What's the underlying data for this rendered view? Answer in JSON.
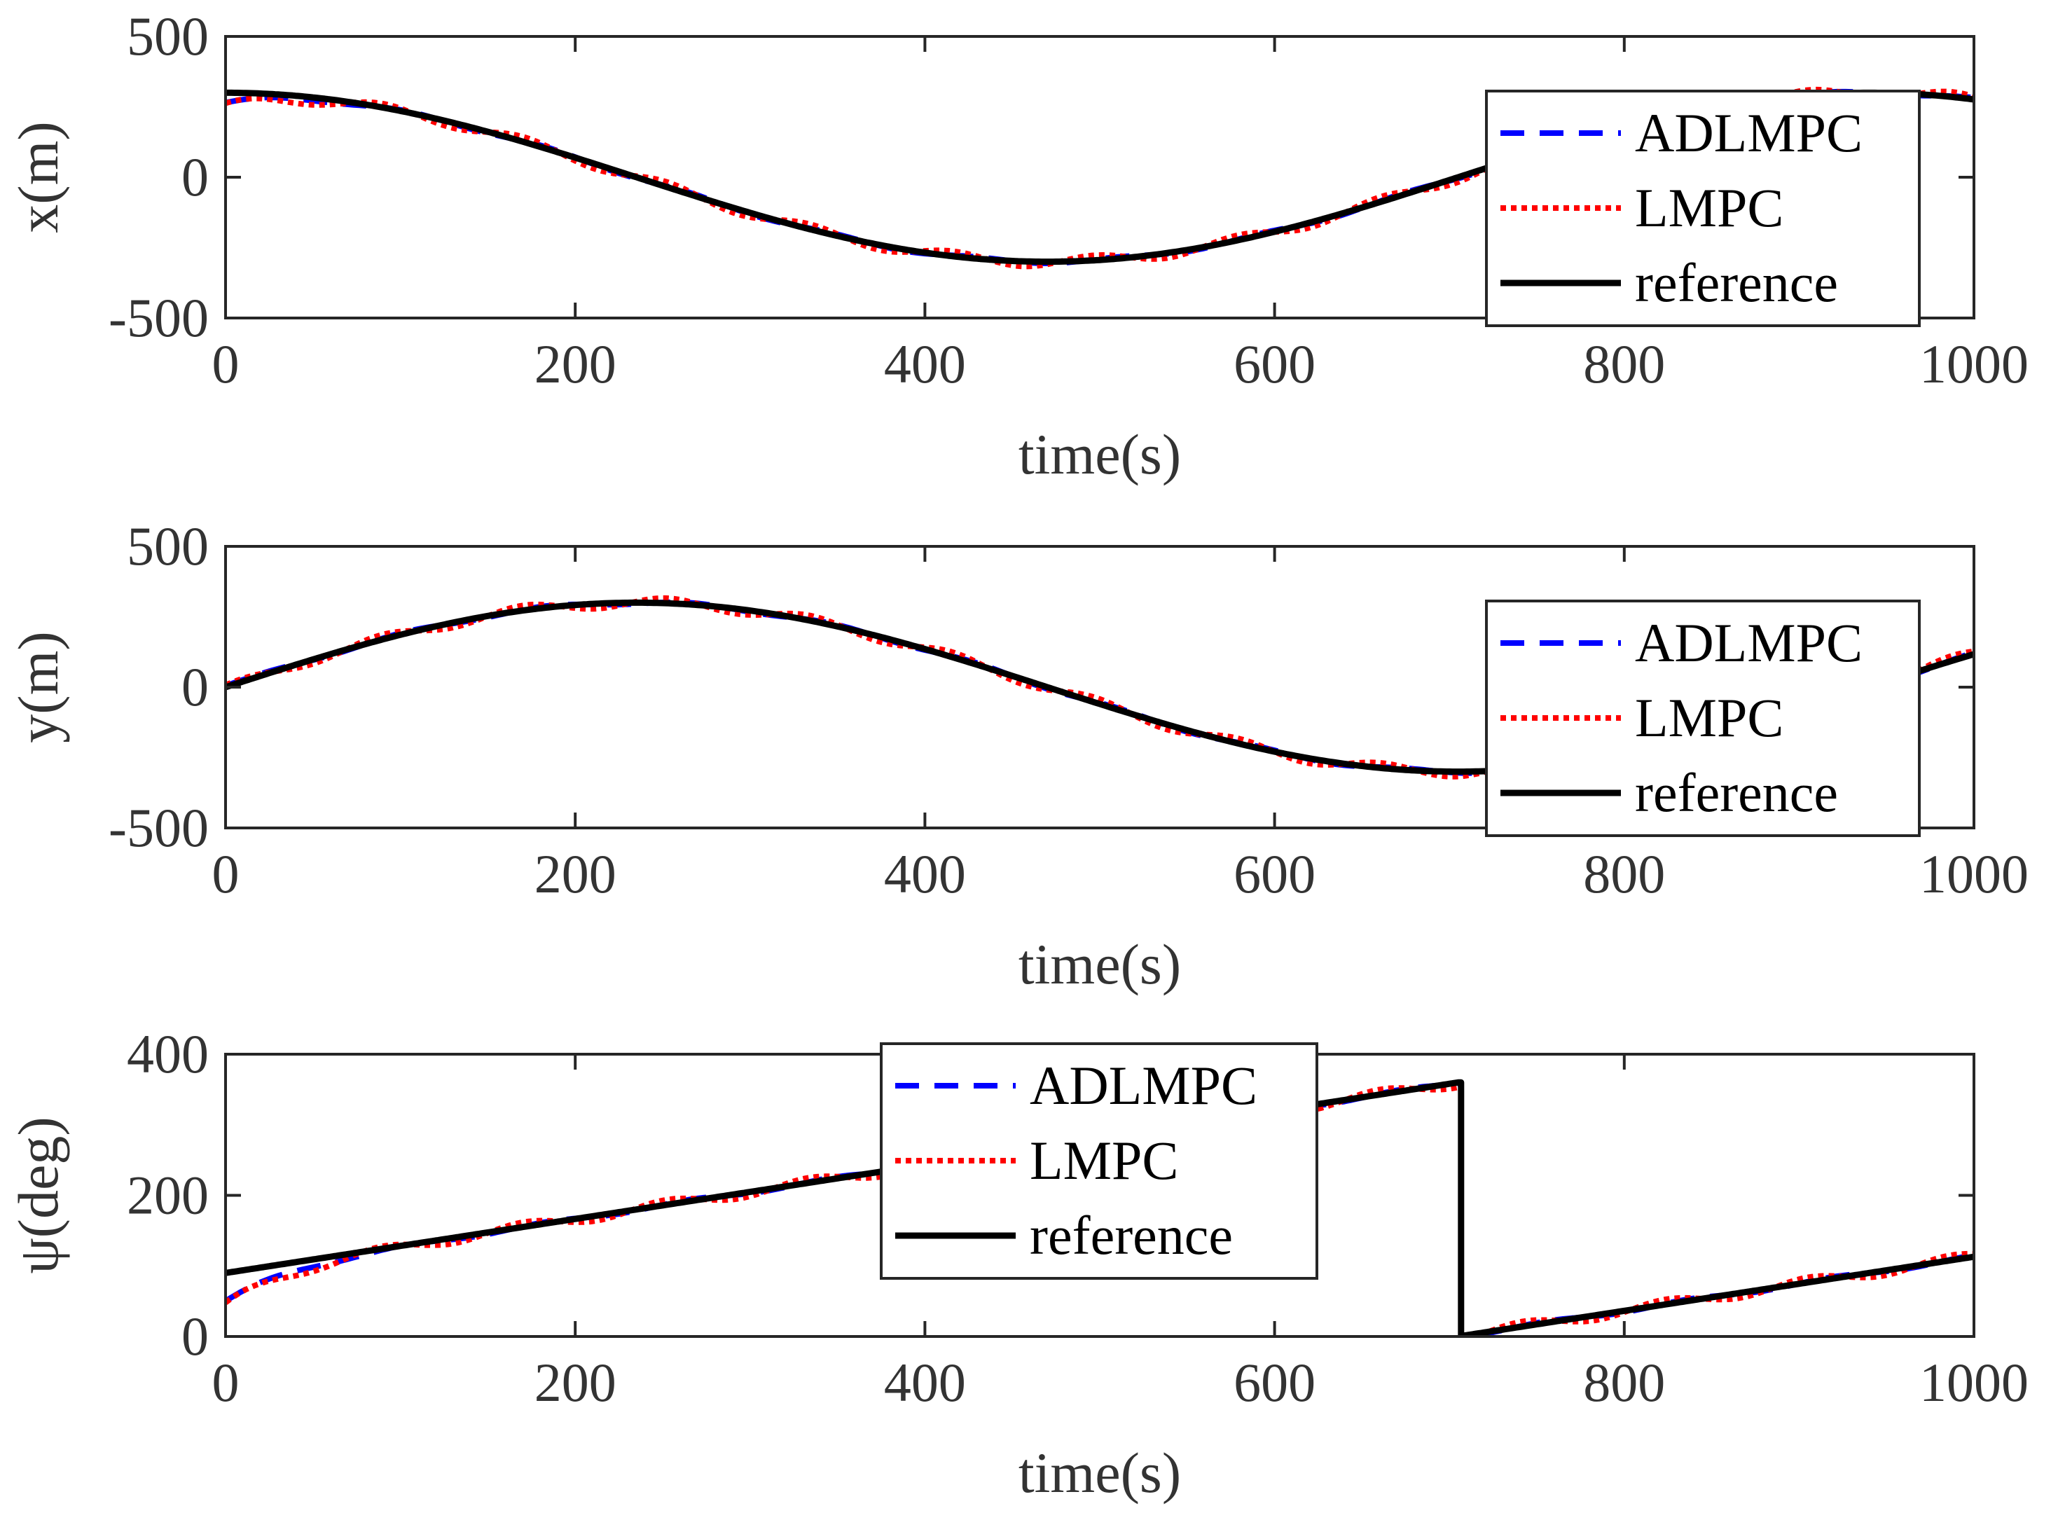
{
  "chart_data": [
    {
      "type": "line",
      "title": "",
      "xlabel": "time(s)",
      "ylabel": "x(m)",
      "xlim": [
        0,
        1000
      ],
      "ylim": [
        -500,
        500
      ],
      "xticks": [
        0,
        200,
        400,
        600,
        800,
        1000
      ],
      "yticks": [
        -500,
        0,
        500
      ],
      "xtick_labels": [
        "0",
        "200",
        "400",
        "600",
        "800",
        "1000"
      ],
      "ytick_labels": [
        "-500",
        "0",
        "500"
      ],
      "grid": false,
      "legend_position": "right",
      "reference": {
        "kind": "sinusoid",
        "amplitude": 300,
        "period": 940,
        "phase": "cos",
        "offset_deg": 0
      },
      "series": [
        {
          "name": "ADLMPC",
          "color": "#0000ff",
          "style": "dashed",
          "start_value": 265
        },
        {
          "name": "LMPC",
          "color": "#ff0000",
          "style": "dotted",
          "start_value": 255
        },
        {
          "name": "reference",
          "color": "#000000",
          "style": "solid"
        }
      ]
    },
    {
      "type": "line",
      "title": "",
      "xlabel": "time(s)",
      "ylabel": "y(m)",
      "xlim": [
        0,
        1000
      ],
      "ylim": [
        -500,
        500
      ],
      "xticks": [
        0,
        200,
        400,
        600,
        800,
        1000
      ],
      "yticks": [
        -500,
        0,
        500
      ],
      "xtick_labels": [
        "0",
        "200",
        "400",
        "600",
        "800",
        "1000"
      ],
      "ytick_labels": [
        "-500",
        "0",
        "500"
      ],
      "grid": false,
      "legend_position": "right",
      "reference": {
        "kind": "sinusoid",
        "amplitude": 300,
        "period": 940,
        "phase": "sin",
        "offset_deg": 0
      },
      "series": [
        {
          "name": "ADLMPC",
          "color": "#0000ff",
          "style": "dashed",
          "start_value": 5
        },
        {
          "name": "LMPC",
          "color": "#ff0000",
          "style": "dotted",
          "start_value": 0
        },
        {
          "name": "reference",
          "color": "#000000",
          "style": "solid"
        }
      ]
    },
    {
      "type": "line",
      "title": "",
      "xlabel": "time(s)",
      "ylabel": "ψ(deg)",
      "xlim": [
        0,
        1000
      ],
      "ylim": [
        0,
        400
      ],
      "xticks": [
        0,
        200,
        400,
        600,
        800,
        1000
      ],
      "yticks": [
        0,
        200,
        400
      ],
      "xtick_labels": [
        "0",
        "200",
        "400",
        "600",
        "800",
        "1000"
      ],
      "ytick_labels": [
        "0",
        "200",
        "400"
      ],
      "grid": false,
      "legend_position": "top-center",
      "reference": {
        "kind": "heading",
        "start_deg": 90,
        "period": 940,
        "wrap_at": 360
      },
      "series": [
        {
          "name": "ADLMPC",
          "color": "#0000ff",
          "style": "dashed",
          "start_value": 50
        },
        {
          "name": "LMPC",
          "color": "#ff0000",
          "style": "dotted",
          "start_value": 45
        },
        {
          "name": "reference",
          "color": "#000000",
          "style": "solid"
        }
      ]
    }
  ]
}
